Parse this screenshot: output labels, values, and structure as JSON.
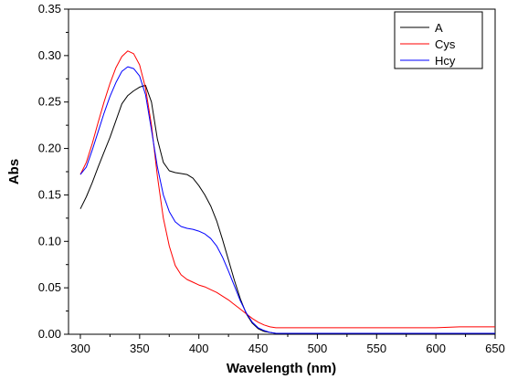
{
  "chart_data": {
    "type": "line",
    "xlabel": "Wavelength (nm)",
    "ylabel": "Abs",
    "xlim": [
      290,
      650
    ],
    "ylim": [
      0.0,
      0.35
    ],
    "xticks": [
      300,
      350,
      400,
      450,
      500,
      550,
      600,
      650
    ],
    "yticks": [
      0.0,
      0.05,
      0.1,
      0.15,
      0.2,
      0.25,
      0.3,
      0.35
    ],
    "ytick_labels": [
      "0.00",
      "0.05",
      "0.10",
      "0.15",
      "0.20",
      "0.25",
      "0.30",
      "0.35"
    ],
    "grid": false,
    "legend_position": "top-right",
    "series": [
      {
        "name": "A",
        "color": "#000000",
        "x": [
          300,
          305,
          310,
          315,
          320,
          325,
          330,
          335,
          340,
          345,
          350,
          355,
          360,
          365,
          370,
          375,
          380,
          385,
          390,
          395,
          400,
          405,
          410,
          415,
          420,
          425,
          430,
          435,
          440,
          445,
          450,
          455,
          460,
          465,
          470,
          480,
          490,
          500,
          550,
          600,
          650
        ],
        "y": [
          0.135,
          0.148,
          0.163,
          0.18,
          0.196,
          0.212,
          0.23,
          0.248,
          0.257,
          0.262,
          0.266,
          0.268,
          0.25,
          0.21,
          0.185,
          0.176,
          0.174,
          0.173,
          0.172,
          0.168,
          0.16,
          0.15,
          0.138,
          0.122,
          0.102,
          0.08,
          0.058,
          0.038,
          0.022,
          0.012,
          0.006,
          0.003,
          0.002,
          0.001,
          0.001,
          0.001,
          0.001,
          0.001,
          0.001,
          0.001,
          0.001
        ]
      },
      {
        "name": "Cys",
        "color": "#ff0000",
        "x": [
          300,
          305,
          310,
          315,
          320,
          325,
          330,
          335,
          340,
          345,
          350,
          355,
          360,
          365,
          370,
          375,
          380,
          385,
          390,
          395,
          400,
          405,
          410,
          415,
          420,
          425,
          430,
          435,
          440,
          445,
          450,
          455,
          460,
          465,
          470,
          480,
          500,
          550,
          600,
          620,
          640,
          650
        ],
        "y": [
          0.172,
          0.185,
          0.205,
          0.228,
          0.25,
          0.27,
          0.287,
          0.299,
          0.305,
          0.302,
          0.29,
          0.265,
          0.225,
          0.17,
          0.125,
          0.095,
          0.074,
          0.064,
          0.059,
          0.056,
          0.053,
          0.051,
          0.048,
          0.045,
          0.041,
          0.037,
          0.032,
          0.027,
          0.022,
          0.017,
          0.013,
          0.01,
          0.008,
          0.007,
          0.007,
          0.007,
          0.007,
          0.007,
          0.007,
          0.008,
          0.008,
          0.008
        ]
      },
      {
        "name": "Hcy",
        "color": "#0000ff",
        "x": [
          300,
          305,
          310,
          315,
          320,
          325,
          330,
          335,
          340,
          345,
          350,
          355,
          360,
          365,
          370,
          375,
          380,
          385,
          390,
          395,
          400,
          405,
          410,
          415,
          420,
          425,
          430,
          435,
          440,
          445,
          450,
          455,
          460,
          465,
          470,
          480,
          500,
          550,
          600,
          650
        ],
        "y": [
          0.172,
          0.18,
          0.198,
          0.218,
          0.238,
          0.256,
          0.271,
          0.283,
          0.288,
          0.286,
          0.278,
          0.258,
          0.22,
          0.18,
          0.15,
          0.132,
          0.121,
          0.116,
          0.114,
          0.113,
          0.111,
          0.108,
          0.103,
          0.095,
          0.083,
          0.068,
          0.052,
          0.036,
          0.023,
          0.013,
          0.007,
          0.004,
          0.002,
          0.001,
          0.001,
          0.001,
          0.001,
          0.001,
          0.001,
          0.001
        ]
      }
    ]
  }
}
